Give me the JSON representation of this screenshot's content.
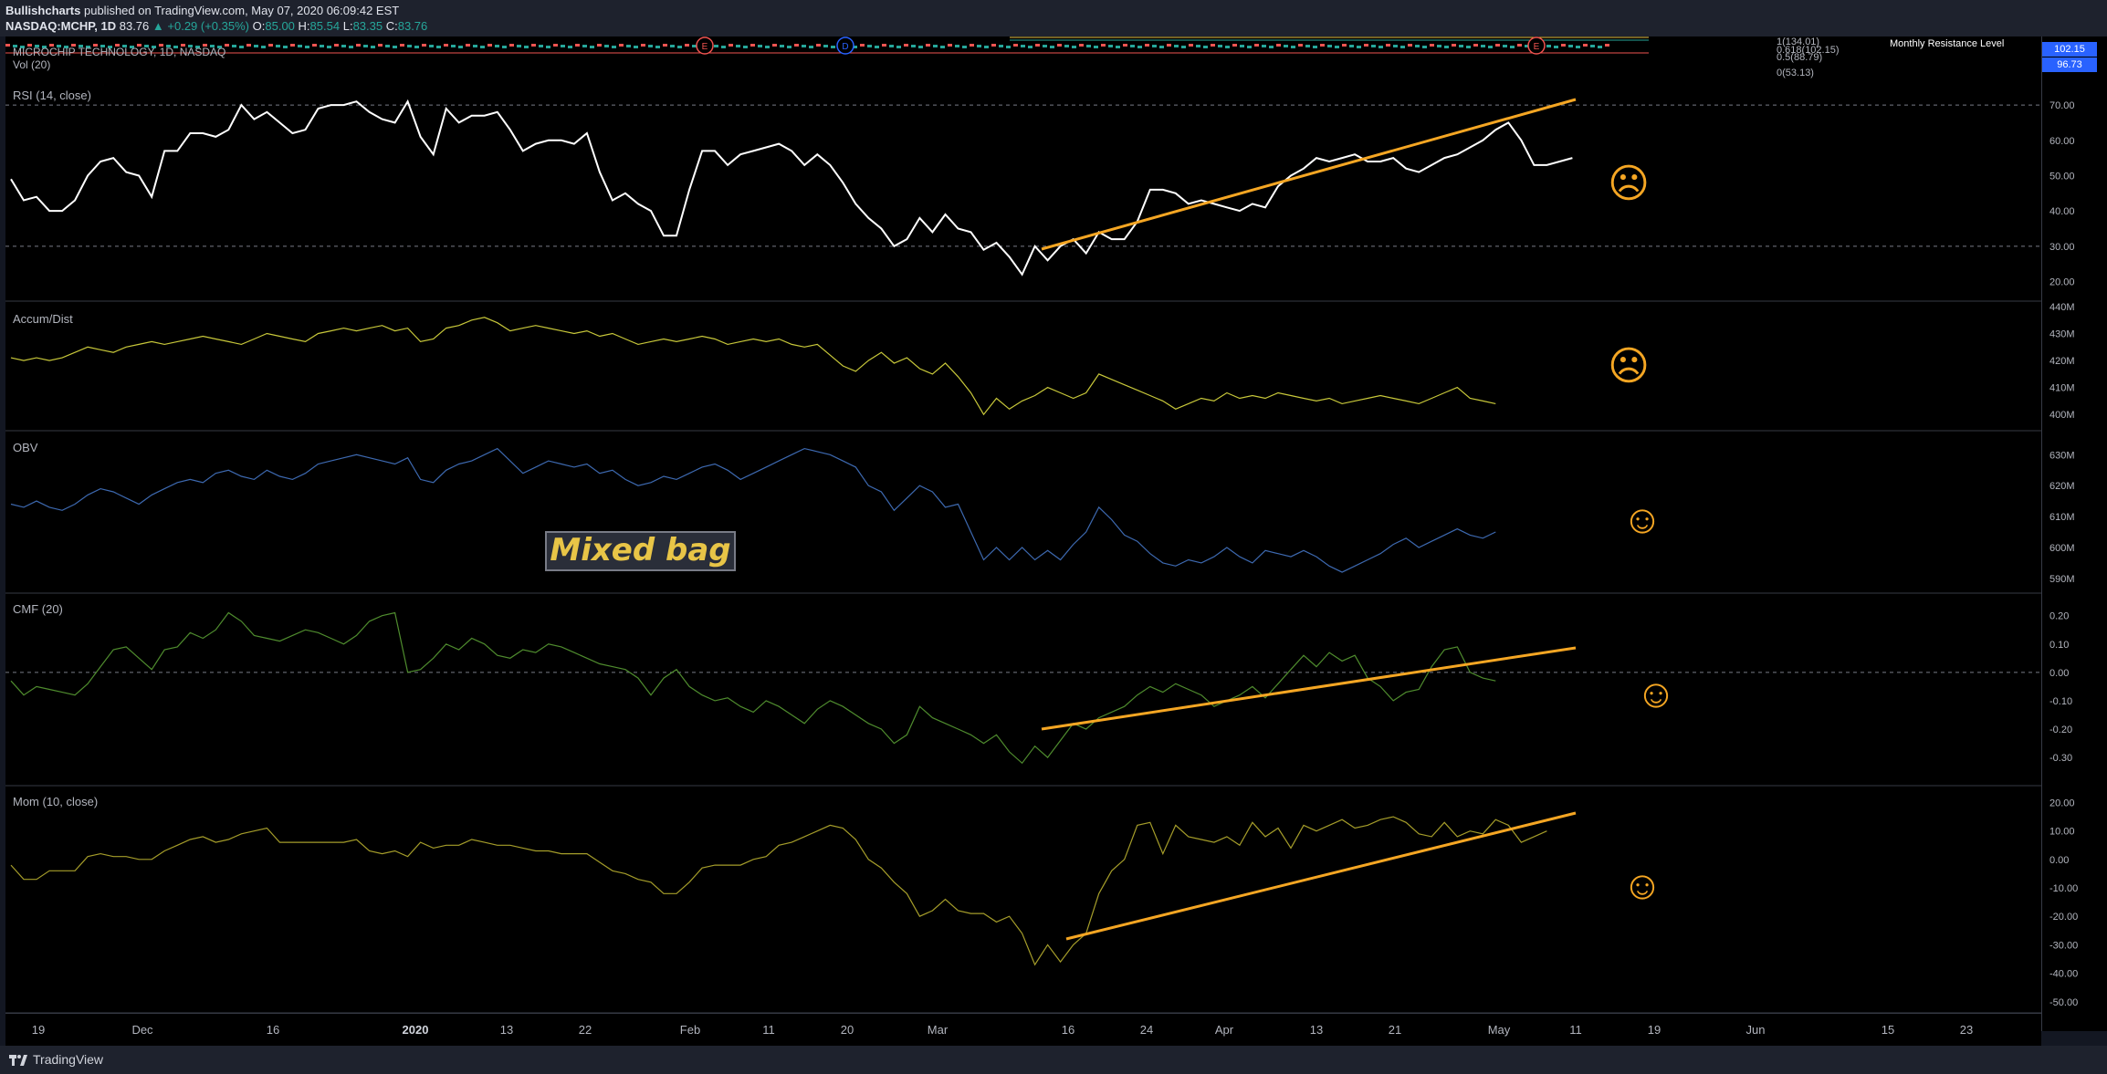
{
  "header": {
    "author": "Bullishcharts",
    "published": "published on TradingView.com, May 07, 2020 06:09:42 EST",
    "symbol": "NASDAQ:MCHP, 1D",
    "last": "83.76",
    "change": "▲ +0.29 (+0.35%)",
    "open_label": "O:",
    "open": "85.00",
    "high_label": "H:",
    "high": "85.54",
    "low_label": "L:",
    "low": "83.35",
    "close_label": "C:",
    "close": "83.76"
  },
  "main_pane": {
    "title": "MICROCHIP TECHNOLOGY, 1D, NASDAQ",
    "volume_label": "Vol (20)",
    "fib_labels": [
      "1(134.01)",
      "0.618(102.15)",
      "0.5(88.79)",
      "0(53.13)"
    ],
    "resistance_label": "Monthly Resistance Level",
    "price_badges": [
      {
        "value": "102.15",
        "color": "#2962ff"
      },
      {
        "value": "96.73",
        "color": "#2962ff"
      }
    ],
    "event_markers": [
      {
        "label": "E",
        "color": "#ef5350"
      },
      {
        "label": "D",
        "color": "#2962ff"
      },
      {
        "label": "E",
        "color": "#ef5350"
      }
    ]
  },
  "panes": [
    {
      "id": "rsi",
      "title": "RSI (14, close)",
      "color": "#ffffff",
      "scale": [
        "70.00",
        "60.00",
        "50.00",
        "40.00",
        "30.00",
        "20.00"
      ],
      "levels": [
        "70.00",
        "30.00"
      ],
      "sentiment": "sad",
      "series": [
        49,
        43,
        44,
        40,
        40,
        43,
        50,
        54,
        55,
        51,
        50,
        44,
        57,
        57,
        62,
        62,
        61,
        63,
        70,
        66,
        68,
        65,
        62,
        63,
        69,
        70,
        70,
        71,
        68,
        66,
        65,
        71,
        61,
        56,
        69,
        65,
        67,
        67,
        68,
        63,
        57,
        59,
        60,
        60,
        59,
        62,
        51,
        43,
        45,
        42,
        40,
        33,
        33,
        46,
        57,
        57,
        53,
        56,
        57,
        58,
        59,
        57,
        53,
        56,
        53,
        48,
        42,
        38,
        35,
        30,
        32,
        38,
        34,
        39,
        35,
        34,
        29,
        31,
        27,
        22,
        30,
        26,
        30,
        32,
        28,
        34,
        32,
        32,
        37,
        46,
        46,
        45,
        42,
        43,
        42,
        41,
        40,
        42,
        41,
        47,
        50,
        52,
        55,
        54,
        55,
        56,
        54,
        54,
        55,
        52,
        51,
        53,
        55,
        56,
        58,
        60,
        63,
        65,
        60,
        53,
        53,
        54,
        55
      ]
    },
    {
      "id": "ad",
      "title": "Accum/Dist",
      "color": "#c8c83a",
      "scale": [
        "440M",
        "430M",
        "420M",
        "410M",
        "400M"
      ],
      "sentiment": "sad",
      "series": [
        421,
        420,
        421,
        420,
        421,
        423,
        425,
        424,
        423,
        425,
        426,
        427,
        426,
        427,
        428,
        429,
        428,
        427,
        426,
        428,
        430,
        429,
        428,
        427,
        430,
        431,
        432,
        431,
        432,
        433,
        431,
        432,
        427,
        428,
        432,
        433,
        435,
        436,
        434,
        431,
        432,
        433,
        432,
        431,
        430,
        431,
        429,
        430,
        428,
        426,
        427,
        428,
        427,
        428,
        429,
        428,
        426,
        427,
        428,
        427,
        428,
        426,
        425,
        426,
        422,
        418,
        416,
        420,
        423,
        419,
        421,
        417,
        415,
        419,
        414,
        408,
        400,
        406,
        402,
        405,
        407,
        410,
        408,
        406,
        408,
        415,
        413,
        411,
        409,
        407,
        405,
        402,
        404,
        406,
        405,
        408,
        406,
        407,
        406,
        408,
        407,
        406,
        405,
        406,
        404,
        405,
        406,
        407,
        406,
        405,
        404,
        406,
        408,
        410,
        406,
        405,
        404
      ]
    },
    {
      "id": "obv",
      "title": "OBV",
      "color": "#3d69b0",
      "scale": [
        "630M",
        "620M",
        "610M",
        "600M",
        "590M"
      ],
      "sentiment": "happy",
      "series": [
        614,
        613,
        615,
        613,
        612,
        614,
        617,
        619,
        618,
        616,
        614,
        617,
        619,
        621,
        622,
        621,
        624,
        625,
        623,
        622,
        625,
        623,
        622,
        624,
        627,
        628,
        629,
        630,
        629,
        628,
        627,
        629,
        622,
        621,
        625,
        627,
        628,
        630,
        632,
        628,
        624,
        626,
        628,
        627,
        626,
        627,
        624,
        625,
        622,
        620,
        621,
        623,
        622,
        624,
        626,
        627,
        625,
        622,
        624,
        626,
        628,
        630,
        632,
        631,
        630,
        628,
        626,
        620,
        618,
        612,
        616,
        620,
        618,
        613,
        614,
        605,
        596,
        600,
        596,
        600,
        596,
        599,
        596,
        601,
        605,
        613,
        609,
        604,
        602,
        598,
        595,
        594,
        596,
        595,
        597,
        600,
        597,
        595,
        599,
        598,
        597,
        599,
        597,
        594,
        592,
        594,
        596,
        598,
        601,
        603,
        600,
        602,
        604,
        606,
        604,
        603,
        605
      ]
    },
    {
      "id": "cmf",
      "title": "CMF (20)",
      "color": "#4f8c2e",
      "scale": [
        "0.20",
        "0.10",
        "0.00",
        "-0.10",
        "-0.20",
        "-0.30"
      ],
      "levels": [
        "0.00"
      ],
      "sentiment": "happy",
      "series": [
        -0.03,
        -0.08,
        -0.05,
        -0.06,
        -0.07,
        -0.08,
        -0.04,
        0.02,
        0.08,
        0.09,
        0.05,
        0.01,
        0.08,
        0.09,
        0.14,
        0.12,
        0.15,
        0.21,
        0.18,
        0.13,
        0.12,
        0.11,
        0.13,
        0.15,
        0.14,
        0.12,
        0.1,
        0.13,
        0.18,
        0.2,
        0.21,
        0.0,
        0.01,
        0.05,
        0.1,
        0.08,
        0.12,
        0.1,
        0.06,
        0.05,
        0.08,
        0.07,
        0.1,
        0.09,
        0.07,
        0.05,
        0.03,
        0.02,
        0.01,
        -0.02,
        -0.08,
        -0.02,
        0.01,
        -0.05,
        -0.08,
        -0.1,
        -0.09,
        -0.12,
        -0.14,
        -0.1,
        -0.12,
        -0.15,
        -0.18,
        -0.13,
        -0.1,
        -0.12,
        -0.15,
        -0.18,
        -0.2,
        -0.25,
        -0.22,
        -0.12,
        -0.16,
        -0.18,
        -0.2,
        -0.22,
        -0.25,
        -0.22,
        -0.28,
        -0.32,
        -0.26,
        -0.3,
        -0.24,
        -0.18,
        -0.2,
        -0.16,
        -0.14,
        -0.12,
        -0.08,
        -0.05,
        -0.07,
        -0.04,
        -0.06,
        -0.08,
        -0.12,
        -0.1,
        -0.08,
        -0.05,
        -0.09,
        -0.04,
        0.01,
        0.06,
        0.02,
        0.07,
        0.04,
        0.06,
        -0.02,
        -0.05,
        -0.1,
        -0.07,
        -0.06,
        0.02,
        0.08,
        0.09,
        0.0,
        -0.02,
        -0.03
      ]
    },
    {
      "id": "mom",
      "title": "Mom (10, close)",
      "color": "#a59d2a",
      "scale": [
        "20.00",
        "10.00",
        "0.00",
        "-10.00",
        "-20.00",
        "-30.00",
        "-40.00",
        "-50.00"
      ],
      "sentiment": "happy",
      "series": [
        -2,
        -7,
        -7,
        -4,
        -4,
        -4,
        1,
        2,
        1,
        1,
        0,
        0,
        3,
        5,
        7,
        8,
        6,
        7,
        9,
        10,
        11,
        6,
        6,
        6,
        6,
        6,
        6,
        7,
        3,
        2,
        3,
        1,
        6,
        4,
        5,
        5,
        7,
        6,
        5,
        5,
        4,
        3,
        3,
        2,
        2,
        2,
        -1,
        -4,
        -5,
        -7,
        -8,
        -12,
        -12,
        -8,
        -3,
        -2,
        -2,
        -2,
        0,
        1,
        5,
        6,
        8,
        10,
        12,
        11,
        7,
        0,
        -3,
        -8,
        -12,
        -20,
        -18,
        -14,
        -18,
        -19,
        -19,
        -22,
        -20,
        -26,
        -37,
        -30,
        -36,
        -30,
        -26,
        -12,
        -4,
        0,
        12,
        13,
        2,
        12,
        8,
        7,
        6,
        8,
        5,
        13,
        8,
        11,
        4,
        12,
        10,
        12,
        14,
        11,
        12,
        14,
        15,
        13,
        9,
        8,
        13,
        8,
        10,
        9,
        14,
        12,
        6,
        8,
        10
      ]
    }
  ],
  "overlay": {
    "label": "Mixed bag",
    "trendline_color": "#f5a623",
    "sentiment_faces": {
      "sad": "☹",
      "happy": "☺"
    },
    "face_color": "#f5a623"
  },
  "time_axis": [
    {
      "label": "19",
      "bold": false
    },
    {
      "label": "Dec",
      "bold": false
    },
    {
      "label": "16",
      "bold": false
    },
    {
      "label": "2020",
      "bold": true
    },
    {
      "label": "13",
      "bold": false
    },
    {
      "label": "22",
      "bold": false
    },
    {
      "label": "Feb",
      "bold": false
    },
    {
      "label": "11",
      "bold": false
    },
    {
      "label": "20",
      "bold": false
    },
    {
      "label": "Mar",
      "bold": false
    },
    {
      "label": "16",
      "bold": false
    },
    {
      "label": "24",
      "bold": false
    },
    {
      "label": "Apr",
      "bold": false
    },
    {
      "label": "13",
      "bold": false
    },
    {
      "label": "21",
      "bold": false
    },
    {
      "label": "May",
      "bold": false
    },
    {
      "label": "11",
      "bold": false
    },
    {
      "label": "19",
      "bold": false
    },
    {
      "label": "Jun",
      "bold": false
    },
    {
      "label": "15",
      "bold": false
    },
    {
      "label": "23",
      "bold": false
    }
  ],
  "footer": {
    "brand": "TradingView"
  }
}
